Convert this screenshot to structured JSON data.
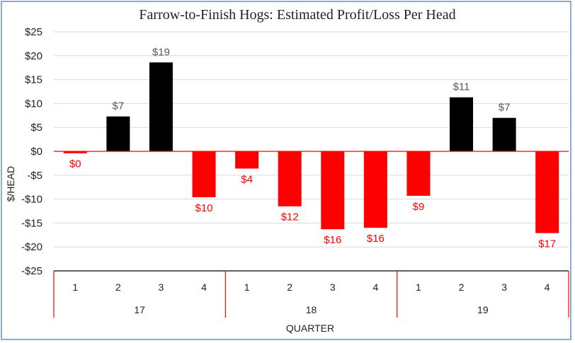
{
  "chart_data": {
    "type": "bar",
    "title": "Farrow-to-Finish Hogs: Estimated Profit/Loss Per Head",
    "xlabel": "QUARTER",
    "ylabel": "$/HEAD",
    "ylim": [
      -25,
      25
    ],
    "y_ticks": [
      25,
      20,
      15,
      10,
      5,
      0,
      -5,
      -10,
      -15,
      -20,
      -25
    ],
    "y_tick_labels": [
      "$25",
      "$20",
      "$15",
      "$10",
      "$5",
      "$0",
      "-$5",
      "-$10",
      "-$15",
      "-$20",
      "-$25"
    ],
    "categories": [
      "1",
      "2",
      "3",
      "4",
      "1",
      "2",
      "3",
      "4",
      "1",
      "2",
      "3",
      "4"
    ],
    "groups": [
      {
        "label": "17",
        "count": 4
      },
      {
        "label": "18",
        "count": 4
      },
      {
        "label": "19",
        "count": 4
      }
    ],
    "values": [
      -0.4,
      7.3,
      18.6,
      -9.6,
      -3.6,
      -11.5,
      -16.3,
      -16.0,
      -9.3,
      11.3,
      7.0,
      -17.1
    ],
    "data_labels": [
      "$0",
      "$7",
      "$19",
      "$10",
      "$4",
      "$12",
      "$16",
      "$16",
      "$9",
      "$11",
      "$7",
      "$17"
    ],
    "colors": {
      "positive": "#000000",
      "negative": "#ff0000",
      "label_positive": "#595959",
      "label_negative": "#ff0000",
      "zero_line": "#ff0000",
      "grid": "#d9d9d9"
    },
    "grid": true,
    "legend": "none"
  }
}
